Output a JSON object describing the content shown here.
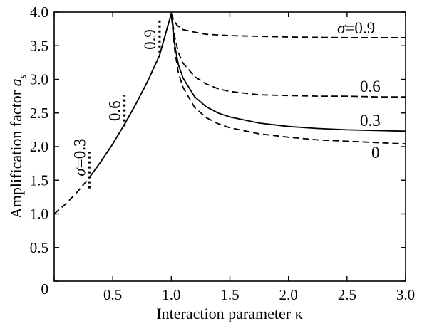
{
  "chart_data": {
    "type": "line",
    "xlabel": "Interaction parameter κ",
    "ylabel_main": "Amplification factor ",
    "ylabel_symbol": "a",
    "ylabel_sub": "s",
    "xlim": [
      0,
      3.0
    ],
    "ylim": [
      0,
      4.0
    ],
    "x_ticks": [
      0,
      0.5,
      1.0,
      1.5,
      2.0,
      2.5,
      3.0
    ],
    "x_tick_labels": [
      "0",
      "0.5",
      "1.0",
      "1.5",
      "2.0",
      "2.5",
      "3.0"
    ],
    "y_ticks": [
      0,
      0.5,
      1.0,
      1.5,
      2.0,
      2.5,
      3.0,
      3.5,
      4.0
    ],
    "y_tick_labels": [
      "0",
      "0.5",
      "1.0",
      "1.5",
      "2.0",
      "2.5",
      "3.0",
      "3.5",
      "4.0"
    ],
    "grid": false,
    "curves": [
      {
        "label": "0",
        "style": "dashed",
        "points": [
          [
            0,
            1.0
          ],
          [
            0.1,
            1.15
          ],
          [
            0.2,
            1.33
          ],
          [
            0.3,
            1.54
          ],
          [
            0.4,
            1.78
          ],
          [
            0.5,
            2.04
          ],
          [
            0.6,
            2.33
          ],
          [
            0.7,
            2.64
          ],
          [
            0.8,
            2.98
          ],
          [
            0.9,
            3.36
          ],
          [
            1.0,
            3.98
          ],
          [
            1.03,
            3.42
          ],
          [
            1.06,
            3.1
          ],
          [
            1.1,
            2.88
          ],
          [
            1.2,
            2.58
          ],
          [
            1.3,
            2.43
          ],
          [
            1.4,
            2.34
          ],
          [
            1.5,
            2.28
          ],
          [
            1.75,
            2.19
          ],
          [
            2.0,
            2.14
          ],
          [
            2.25,
            2.1
          ],
          [
            2.5,
            2.08
          ],
          [
            2.75,
            2.06
          ],
          [
            3.0,
            2.04
          ]
        ]
      },
      {
        "label": "0.3",
        "style": "solid",
        "points": [
          [
            0.3,
            1.54
          ],
          [
            0.4,
            1.78
          ],
          [
            0.5,
            2.04
          ],
          [
            0.6,
            2.33
          ],
          [
            0.7,
            2.64
          ],
          [
            0.8,
            2.98
          ],
          [
            0.9,
            3.36
          ],
          [
            1.0,
            3.98
          ],
          [
            1.03,
            3.5
          ],
          [
            1.06,
            3.22
          ],
          [
            1.1,
            3.02
          ],
          [
            1.2,
            2.74
          ],
          [
            1.3,
            2.59
          ],
          [
            1.4,
            2.5
          ],
          [
            1.5,
            2.44
          ],
          [
            1.75,
            2.35
          ],
          [
            2.0,
            2.3
          ],
          [
            2.25,
            2.27
          ],
          [
            2.5,
            2.25
          ],
          [
            2.75,
            2.24
          ],
          [
            3.0,
            2.23
          ]
        ]
      },
      {
        "label": "0.6",
        "style": "dashed",
        "points": [
          [
            1.0,
            3.98
          ],
          [
            1.03,
            3.62
          ],
          [
            1.06,
            3.4
          ],
          [
            1.1,
            3.24
          ],
          [
            1.2,
            3.04
          ],
          [
            1.3,
            2.93
          ],
          [
            1.4,
            2.86
          ],
          [
            1.5,
            2.82
          ],
          [
            1.75,
            2.77
          ],
          [
            2.0,
            2.76
          ],
          [
            2.25,
            2.75
          ],
          [
            2.5,
            2.75
          ],
          [
            2.75,
            2.74
          ],
          [
            3.0,
            2.74
          ]
        ]
      },
      {
        "label": "σ=0.9",
        "style": "dashed",
        "points": [
          [
            1.0,
            3.98
          ],
          [
            1.02,
            3.88
          ],
          [
            1.05,
            3.8
          ],
          [
            1.1,
            3.74
          ],
          [
            1.2,
            3.7
          ],
          [
            1.3,
            3.67
          ],
          [
            1.5,
            3.65
          ],
          [
            1.75,
            3.64
          ],
          [
            2.0,
            3.63
          ],
          [
            2.5,
            3.62
          ],
          [
            3.0,
            3.62
          ]
        ]
      }
    ],
    "markers": [
      {
        "label": "σ=0.3",
        "x": 0.3,
        "y_range": [
          1.38,
          1.92
        ]
      },
      {
        "label": "0.6",
        "x": 0.6,
        "y_range": [
          2.3,
          2.76
        ]
      },
      {
        "label": "0.9",
        "x": 0.9,
        "y_range": [
          3.4,
          3.9
        ]
      }
    ]
  }
}
